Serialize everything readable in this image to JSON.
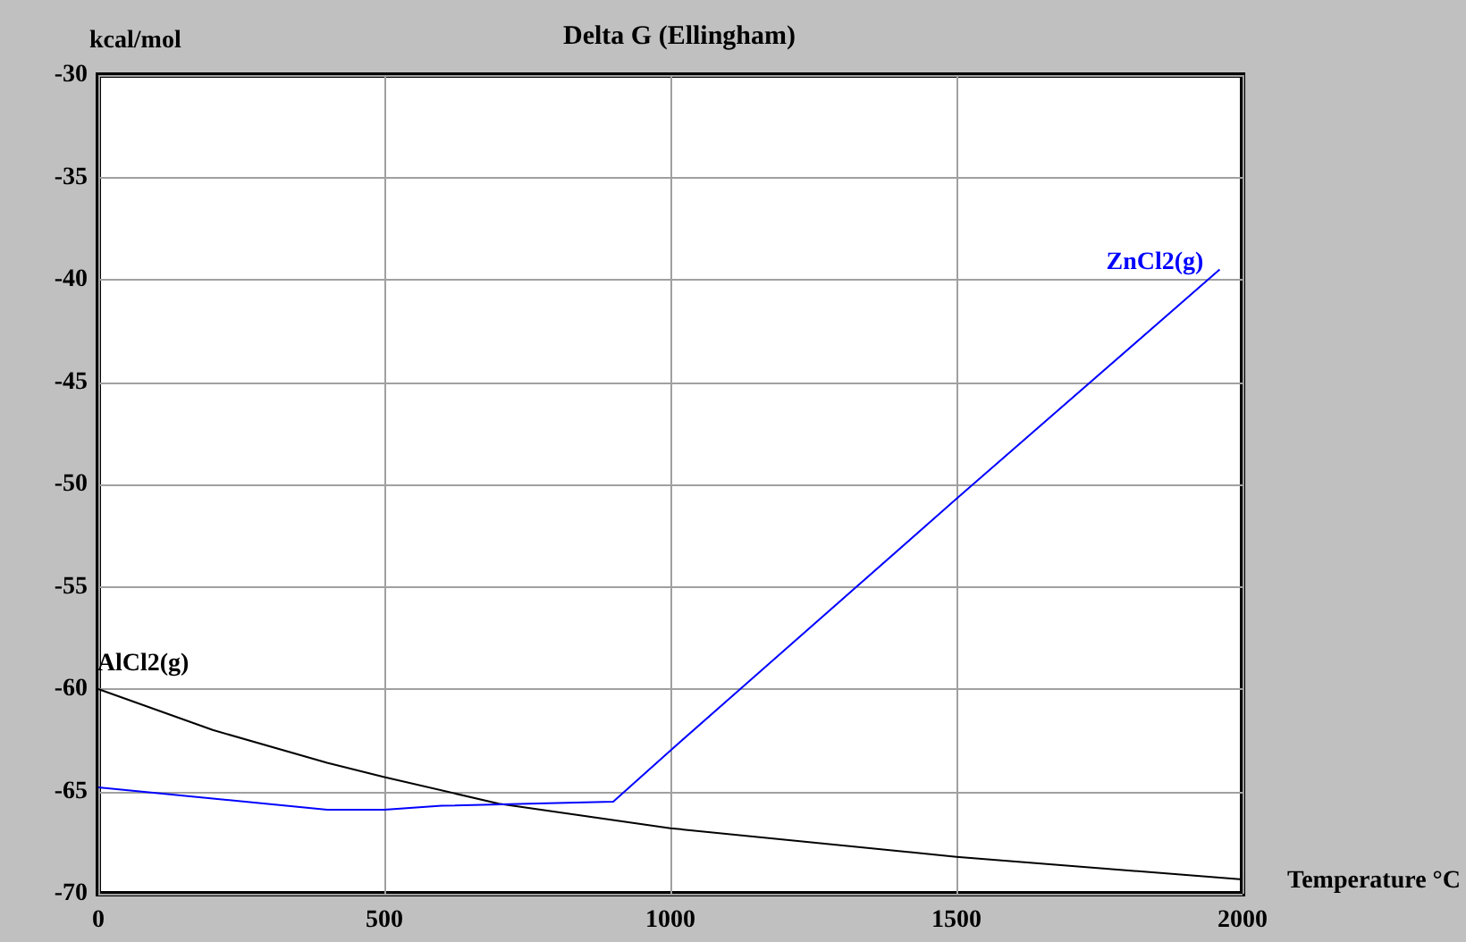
{
  "chart_data": {
    "type": "line",
    "title": "Delta G (Ellingham)",
    "xlabel": "Temperature °C",
    "ylabel": "kcal/mol",
    "xlim": [
      0,
      2000
    ],
    "xticks": [
      0,
      500,
      1000,
      1500,
      2000
    ],
    "ylim": [
      -70,
      -30
    ],
    "yticks": [
      -70,
      -65,
      -60,
      -55,
      -50,
      -45,
      -40,
      -35,
      -30
    ],
    "grid": true,
    "legend": false,
    "marker": "none",
    "line_style": "solid",
    "series": [
      {
        "name": "AlCl2(g)",
        "color": "#000000",
        "x": [
          0,
          200,
          400,
          500,
          700,
          1000,
          1500,
          2000
        ],
        "values": [
          -60,
          -62,
          -63.6,
          -64.3,
          -65.6,
          -66.8,
          -68.2,
          -69.3
        ]
      },
      {
        "name": "ZnCl2(g)",
        "color": "#0000ff",
        "x": [
          0,
          400,
          500,
          600,
          900,
          1000,
          1500,
          1960
        ],
        "values": [
          -64.8,
          -65.9,
          -65.9,
          -65.7,
          -65.5,
          -63,
          -50.7,
          -39.5
        ]
      }
    ]
  }
}
